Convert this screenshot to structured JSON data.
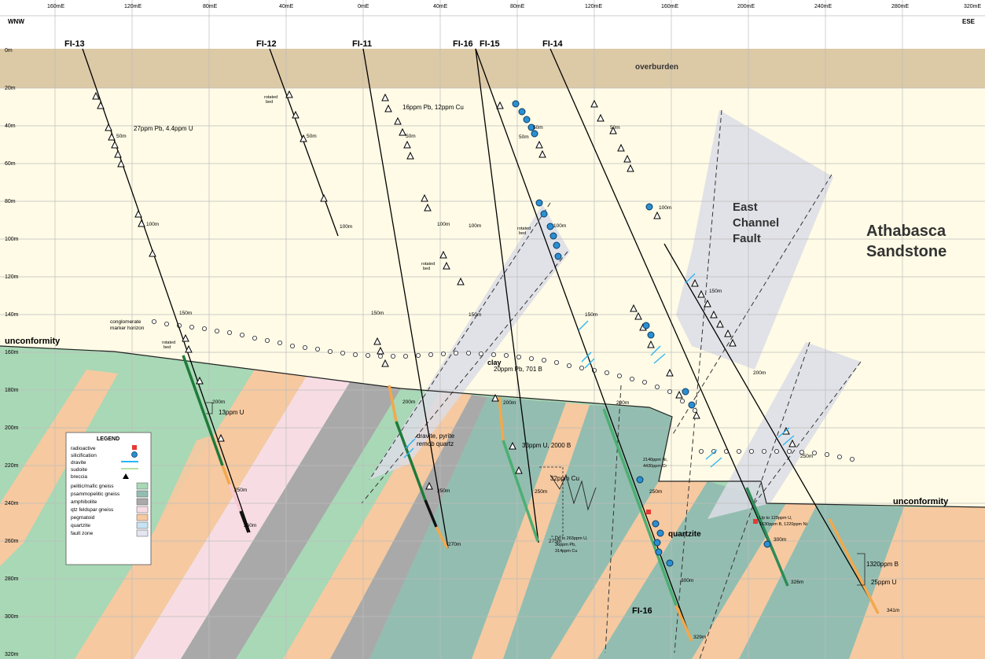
{
  "x_axis": {
    "labels": [
      "160mE",
      "120mE",
      "80mE",
      "40mE",
      "0mE",
      "40mE",
      "80mE",
      "120mE",
      "160mE",
      "200mE",
      "240mE",
      "280mE",
      "320mE"
    ]
  },
  "y_axis": {
    "labels": [
      "0m",
      "20m",
      "40m",
      "60m",
      "80m",
      "100m",
      "120m",
      "140m",
      "160m",
      "180m",
      "200m",
      "220m",
      "240m",
      "260m",
      "280m",
      "300m",
      "320m"
    ]
  },
  "orientation": {
    "left": "WNW",
    "right": "ESE"
  },
  "units": {
    "overburden": "overburden",
    "sandstone": "Athabasca Sandstone",
    "sandstone_line1": "Athabasca",
    "sandstone_line2": "Sandstone",
    "fault": "East Channel Fault",
    "fault_line1": "East",
    "fault_line2": "Channel",
    "fault_line3": "Fault",
    "unconformity_left": "unconformity",
    "unconformity_right": "unconformity",
    "marker": "conglomerate marker horizon",
    "marker_line1": "conglomerate",
    "marker_line2": "marker horizon",
    "quartzite": "quartzite",
    "clay": "clay"
  },
  "holes": [
    {
      "id": "FI-13",
      "depth_marks": [
        "50m",
        "100m",
        "150m",
        "200m",
        "250m"
      ],
      "end": "260m"
    },
    {
      "id": "FI-12",
      "depth_marks": [
        "50m",
        "100m"
      ],
      "end": ""
    },
    {
      "id": "FI-11",
      "depth_marks": [
        "50m",
        "100m",
        "150m",
        "200m",
        "250m"
      ],
      "end": "270m"
    },
    {
      "id": "FI-16",
      "depth_marks": [
        "50m",
        "100m",
        "150m",
        "200m",
        "250m",
        "300m"
      ],
      "end": "329m"
    },
    {
      "id": "FI-15",
      "depth_marks": [
        "50m",
        "100m",
        "150m",
        "200m",
        "250m"
      ],
      "end": "275m"
    },
    {
      "id": "FI-14",
      "depth_marks": [
        "50m",
        "100m",
        "150m",
        "200m",
        "250m",
        "300m"
      ],
      "end": "326m"
    },
    {
      "id": "FI-16",
      "depth_marks": [],
      "end": "341m"
    }
  ],
  "bottom_hole_label": "FI-16",
  "annotations": {
    "a1": "27ppm Pb, 4.4ppm U",
    "a2": "16ppm Pb, 12ppm Cu",
    "a3": "20ppm Pb, 701 B",
    "a4": "13ppm U",
    "a5": "dravite, pyrite",
    "a6": "remob quartz",
    "a7": "33ppm U, 2000 B",
    "a8": "32ppm Cu",
    "a9": "2140ppm Ni,",
    "a10": "4430ppm Cr",
    "a11": "Up to 263ppm U,",
    "a12": "36ppm Pb,",
    "a13": "314ppm Cu",
    "a14": "Up to 129ppm U,",
    "a15": "1630ppm B, 1220ppm Ni",
    "a16": "1320ppm B",
    "a17": "25ppm U",
    "rotated": "rotated",
    "bed": "bed"
  },
  "legend": {
    "title": "LEGEND",
    "items": [
      {
        "label": "radioactive",
        "swatch": "#e53935",
        "kind": "square"
      },
      {
        "label": "silicification",
        "swatch": "#1e88c8",
        "kind": "dot"
      },
      {
        "label": "dravite",
        "swatch": "#29b6f6",
        "kind": "line"
      },
      {
        "label": "sudoite",
        "swatch": "#b6e3a0",
        "kind": "line"
      },
      {
        "label": "breccia",
        "swatch": "#000000",
        "kind": "triangle"
      },
      {
        "label": "pelitic/mafic gneiss",
        "swatch": "#a8d8b6",
        "kind": "box"
      },
      {
        "label": "psammopelitic gneiss",
        "swatch": "#93bdb0",
        "kind": "box"
      },
      {
        "label": "amphibolite",
        "swatch": "#a9a9a9",
        "kind": "box"
      },
      {
        "label": "qtz feldspar gneiss",
        "swatch": "#f7dde3",
        "kind": "box"
      },
      {
        "label": "pegmatoid",
        "swatch": "#f6c9a0",
        "kind": "box"
      },
      {
        "label": "quartzite",
        "swatch": "#c7e3f2",
        "kind": "box"
      },
      {
        "label": "fault zone",
        "swatch": "#e4e5ee",
        "kind": "box"
      }
    ]
  },
  "colors": {
    "overburden": "#dcc9a6",
    "sandstone": "#fffbe6",
    "pelitic": "#a8d8b6",
    "psammo": "#93bdb0",
    "amphibolite": "#a9a9a9",
    "qfg": "#f7dde3",
    "pegmatoid": "#f6c9a0",
    "fault": "#dcdde6"
  }
}
